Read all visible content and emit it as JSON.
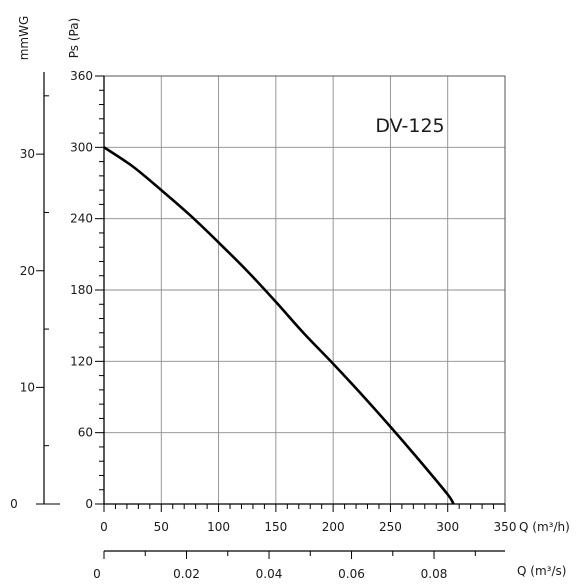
{
  "chart_data": {
    "type": "line",
    "title": "",
    "model_label": "DV-125",
    "x_axis": {
      "label": "Q (m³/h)",
      "range": [
        0,
        350
      ],
      "major_ticks": [
        0,
        50,
        100,
        150,
        200,
        250,
        300,
        350
      ],
      "minor_step": 10
    },
    "x_axis_secondary": {
      "label": "Q (m³/s)",
      "range": [
        0,
        0.0972
      ],
      "ticks": [
        0,
        0.02,
        0.04,
        0.06,
        0.08
      ],
      "tick_labels": [
        "0",
        "0.02",
        "0.04",
        "0.06",
        "0.08"
      ]
    },
    "y_axis": {
      "label": "Ps (Pa)",
      "range": [
        0,
        360
      ],
      "major_ticks": [
        0,
        60,
        120,
        180,
        240,
        300,
        360
      ],
      "minor_step": 12
    },
    "y_axis_secondary": {
      "label": "mmWG",
      "range": [
        0,
        36.7
      ],
      "ticks": [
        0,
        10,
        20,
        30
      ],
      "minor_step": 5
    },
    "grid": true,
    "series": [
      {
        "x": [
          0,
          25,
          50,
          75,
          100,
          125,
          150,
          175,
          200,
          225,
          250,
          275,
          300,
          305
        ],
        "y": [
          300,
          284,
          264,
          243,
          220,
          196,
          170,
          143,
          118,
          92,
          65,
          37,
          8,
          0
        ]
      }
    ]
  }
}
